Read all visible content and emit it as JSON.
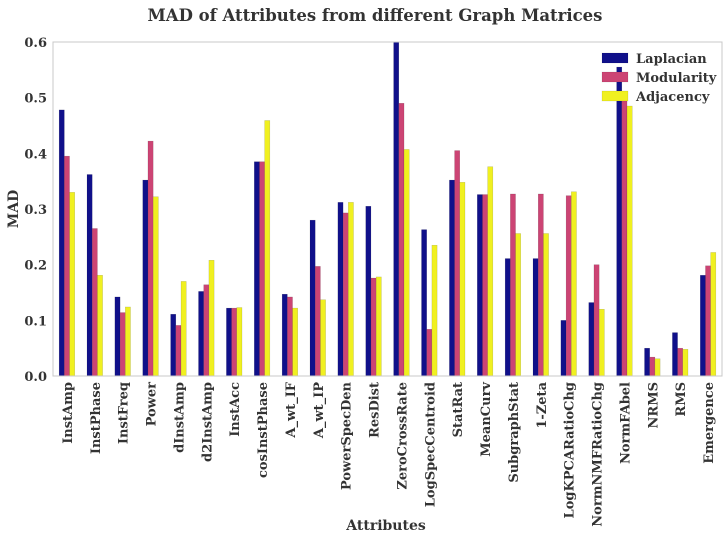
{
  "chart_data": {
    "type": "bar",
    "title": "MAD of Attributes from different Graph Matrices",
    "xlabel": "Attributes",
    "ylabel": "MAD",
    "ylim": [
      0,
      0.6
    ],
    "yticks": [
      "0.0",
      "0.1",
      "0.2",
      "0.3",
      "0.4",
      "0.5",
      "0.6"
    ],
    "grid": false,
    "legend_position": "top-right",
    "categories": [
      "InstAmp",
      "InstPhase",
      "InstFreq",
      "Power",
      "dInstAmp",
      "d2InstAmp",
      "InstAcc",
      "cosInstPhase",
      "A_wt_IF",
      "A_wt_IP",
      "PowerSpecDen",
      "ResDist",
      "ZeroCrossRate",
      "LogSpecCentroid",
      "StatRat",
      "MeanCurv",
      "SubgraphStat",
      "1-Zeta",
      "LogKPCARatioChg",
      "NormNMFRatioChg",
      "NormFAbel",
      "NRMS",
      "RMS",
      "Emergence"
    ],
    "series": [
      {
        "name": "Laplacian",
        "color": "#10108a",
        "values": [
          0.478,
          0.362,
          0.142,
          0.352,
          0.111,
          0.152,
          0.122,
          0.385,
          0.147,
          0.28,
          0.312,
          0.305,
          0.6,
          0.263,
          0.352,
          0.326,
          0.211,
          0.211,
          0.1,
          0.132,
          0.555,
          0.05,
          0.078,
          0.181
        ]
      },
      {
        "name": "Modularity",
        "color": "#cc4474",
        "values": [
          0.395,
          0.265,
          0.114,
          0.422,
          0.091,
          0.164,
          0.122,
          0.385,
          0.142,
          0.197,
          0.293,
          0.176,
          0.49,
          0.084,
          0.405,
          0.326,
          0.327,
          0.327,
          0.324,
          0.2,
          0.5,
          0.034,
          0.05,
          0.198
        ]
      },
      {
        "name": "Adjacency",
        "color": "#f0f020",
        "values": [
          0.33,
          0.181,
          0.124,
          0.322,
          0.17,
          0.208,
          0.123,
          0.459,
          0.122,
          0.137,
          0.312,
          0.178,
          0.407,
          0.235,
          0.348,
          0.376,
          0.256,
          0.256,
          0.331,
          0.12,
          0.485,
          0.031,
          0.048,
          0.222
        ]
      }
    ]
  }
}
